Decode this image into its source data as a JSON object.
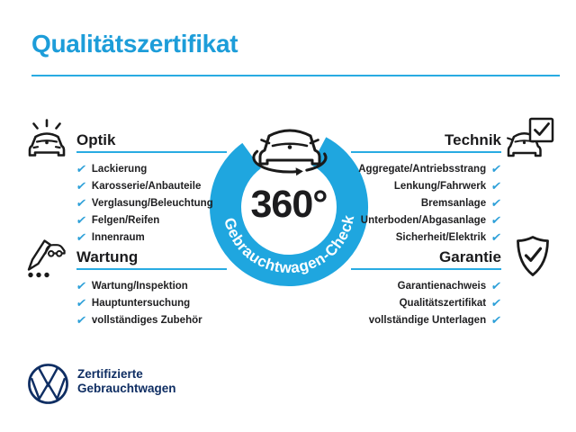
{
  "title": "Qualitätszertifikat",
  "center": {
    "degree_label": "360°",
    "ring_label": "Gebrauchtwagen-Check"
  },
  "sections": [
    {
      "id": "optik",
      "label": "Optik",
      "icon": "sparkling-car-icon",
      "items": [
        "Lackierung",
        "Karosserie/Anbauteile",
        "Verglasung/Beleuchtung",
        "Felgen/Reifen",
        "Innenraum"
      ]
    },
    {
      "id": "technik",
      "label": "Technik",
      "icon": "car-checkbox-icon",
      "items": [
        "Aggregate/Antriebsstrang",
        "Lenkung/Fahrwerk",
        "Bremsanlage",
        "Unterboden/Abgasanlage",
        "Sicherheit/Elektrik"
      ]
    },
    {
      "id": "wartung",
      "label": "Wartung",
      "icon": "service-checklist-icon",
      "items": [
        "Wartung/Inspektion",
        "Hauptuntersuchung",
        "vollständiges Zubehör"
      ]
    },
    {
      "id": "garantie",
      "label": "Garantie",
      "icon": "shield-check-icon",
      "items": [
        "Garantienachweis",
        "Qualitätszertifikat",
        "vollständige Unterlagen"
      ]
    }
  ],
  "footer": {
    "brand_line1": "Zertifizierte",
    "brand_line2": "Gebrauchtwagen"
  },
  "icons": {
    "check": "✔"
  },
  "colors": {
    "accent_blue": "#1d9dd9",
    "rule_blue": "#29abe2",
    "ring_blue": "#1fa6df",
    "check_blue": "#2b9fd8",
    "dark_text": "#1b1b1d",
    "vw_navy": "#0f2e63"
  }
}
